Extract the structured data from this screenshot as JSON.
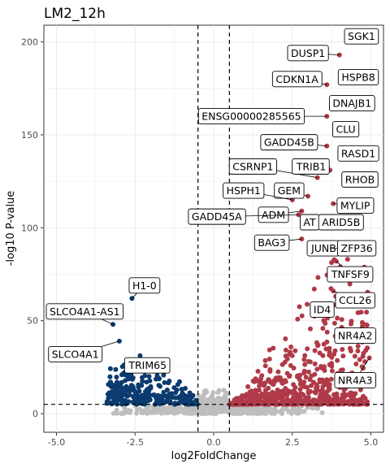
{
  "chart_data": {
    "type": "scatter",
    "title": "LM2_12h",
    "xlabel": "log2FoldChange",
    "ylabel": "-log10 P-value",
    "xlim": [
      -5.4,
      5.4
    ],
    "ylim": [
      -10,
      209
    ],
    "x_ticks": [
      -5.0,
      -2.5,
      0.0,
      2.5,
      5.0
    ],
    "y_ticks": [
      0,
      50,
      100,
      150,
      200
    ],
    "x_tick_labels": [
      "-5.0",
      "-2.5",
      "0.0",
      "2.5",
      "5.0"
    ],
    "y_tick_labels": [
      "0",
      "50",
      "100",
      "150",
      "200"
    ],
    "grid": true,
    "fc_threshold": 0.5,
    "p_threshold": 5,
    "colors": {
      "up": "#b03a48",
      "down": "#0b3b6f",
      "ns": "#bebebe",
      "grid": "#ebebeb",
      "threshold_line": "#000000"
    },
    "labeled_genes": [
      {
        "gene": "SGK1",
        "x": 4.55,
        "y": 200,
        "lx": 4.7,
        "ly": 203
      },
      {
        "gene": "DUSP1",
        "x": 4.0,
        "y": 193,
        "lx": 3.0,
        "ly": 194
      },
      {
        "gene": "HSPB8",
        "x": 4.9,
        "y": 183,
        "lx": 4.6,
        "ly": 181
      },
      {
        "gene": "CDKN1A",
        "x": 3.6,
        "y": 177,
        "lx": 2.65,
        "ly": 180
      },
      {
        "gene": "DNAJB1",
        "x": 4.0,
        "y": 168,
        "lx": 4.4,
        "ly": 167
      },
      {
        "gene": "ENSG00000285565",
        "x": 3.6,
        "y": 160,
        "lx": 1.2,
        "ly": 160
      },
      {
        "gene": "CLU",
        "x": 4.0,
        "y": 150,
        "lx": 4.2,
        "ly": 153
      },
      {
        "gene": "GADD45B",
        "x": 3.6,
        "y": 144,
        "lx": 2.4,
        "ly": 146
      },
      {
        "gene": "RASD1",
        "x": 4.1,
        "y": 140,
        "lx": 4.6,
        "ly": 140
      },
      {
        "gene": "CSRNP1",
        "x": 3.3,
        "y": 127,
        "lx": 1.25,
        "ly": 133
      },
      {
        "gene": "TRIB1",
        "x": 3.7,
        "y": 131,
        "lx": 3.1,
        "ly": 133
      },
      {
        "gene": "RHOB",
        "x": 4.3,
        "y": 125,
        "lx": 4.65,
        "ly": 126
      },
      {
        "gene": "GEM",
        "x": 3.0,
        "y": 117,
        "lx": 2.4,
        "ly": 120
      },
      {
        "gene": "HSPH1",
        "x": 2.5,
        "y": 115,
        "lx": 0.95,
        "ly": 120
      },
      {
        "gene": "MYLIP",
        "x": 3.8,
        "y": 113,
        "lx": 4.5,
        "ly": 112
      },
      {
        "gene": "ADM",
        "x": 2.8,
        "y": 109,
        "lx": 1.9,
        "ly": 107
      },
      {
        "gene": "GADD45A",
        "x": 2.7,
        "y": 107,
        "lx": 0.1,
        "ly": 106
      },
      {
        "gene": "AT",
        "x": 3.2,
        "y": 104,
        "lx": 3.05,
        "ly": 103
      },
      {
        "gene": "ARID5B",
        "x": 3.4,
        "y": 103,
        "lx": 4.05,
        "ly": 103
      },
      {
        "gene": "BAG3",
        "x": 2.8,
        "y": 94,
        "lx": 1.85,
        "ly": 92
      },
      {
        "gene": "JUNB",
        "x": 3.2,
        "y": 91,
        "lx": 3.5,
        "ly": 89
      },
      {
        "gene": "ZFP36",
        "x": 3.7,
        "y": 89,
        "lx": 4.55,
        "ly": 89
      },
      {
        "gene": "TNFSF9",
        "x": 3.9,
        "y": 82,
        "lx": 4.35,
        "ly": 75
      },
      {
        "gene": "H1-0",
        "x": -2.6,
        "y": 62,
        "lx": -2.2,
        "ly": 69
      },
      {
        "gene": "CCL26",
        "x": 3.8,
        "y": 66,
        "lx": 4.5,
        "ly": 61
      },
      {
        "gene": "ID4",
        "x": 3.2,
        "y": 57,
        "lx": 3.45,
        "ly": 56
      },
      {
        "gene": "SLCO4A1-AS1",
        "x": -3.2,
        "y": 48,
        "lx": -4.1,
        "ly": 55
      },
      {
        "gene": "NR4A2",
        "x": 4.1,
        "y": 44,
        "lx": 4.5,
        "ly": 42
      },
      {
        "gene": "SLCO4A1",
        "x": -3.0,
        "y": 39,
        "lx": -4.4,
        "ly": 32
      },
      {
        "gene": "NR4A3",
        "x": 4.95,
        "y": 30,
        "lx": 4.5,
        "ly": 18
      },
      {
        "gene": "TRIM65",
        "x": -2.4,
        "y": 25,
        "lx": -2.1,
        "ly": 26
      }
    ]
  }
}
